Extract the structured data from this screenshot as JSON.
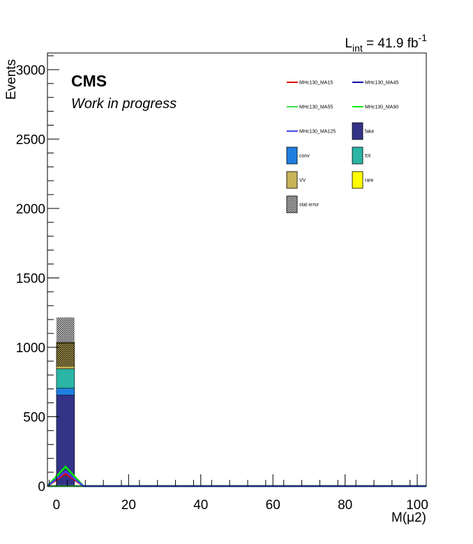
{
  "chart_data": {
    "type": "bar",
    "stacked": true,
    "xlabel": "M(μ2)",
    "ylabel": "Events",
    "xlim": [
      -2.5,
      102.5
    ],
    "ylim": [
      0,
      3120
    ],
    "x_ticks": [
      0,
      20,
      40,
      60,
      80,
      100
    ],
    "y_ticks": [
      0,
      500,
      1000,
      1500,
      2000,
      2500,
      3000
    ],
    "bin_width": 5,
    "grid": false,
    "legend_position": "top-right",
    "lumi_label": {
      "prefix": "L",
      "sub": "int",
      "mid": " = 41.9 fb",
      "sup": "-1"
    },
    "cms_label": "CMS",
    "extra_label": "Work in progress",
    "stack": [
      {
        "name": "fake",
        "color": "#333388",
        "values": [
          655
        ]
      },
      {
        "name": "conv",
        "color": "#1f7fe0",
        "values": [
          50
        ]
      },
      {
        "name": "ttX",
        "color": "#2ab5a5",
        "values": [
          140
        ]
      },
      {
        "name": "VV",
        "color": "#c8b35a",
        "values": [
          185
        ]
      },
      {
        "name": "rare",
        "color": "#ffff00",
        "values": [
          5
        ]
      }
    ],
    "stat_error": {
      "name": "stat error",
      "center": [
        1035
      ],
      "low": [
        860
      ],
      "high": [
        1215
      ]
    },
    "signals": [
      {
        "name": "MHc130_MA15",
        "color": "#e00000",
        "x": [
          -2.5,
          2.5,
          7.5,
          102.5
        ],
        "y": [
          0,
          90,
          0,
          0
        ]
      },
      {
        "name": "MHc130_MA45",
        "color": "#0000aa",
        "x": [
          -2.5,
          2.5,
          7.5,
          102.5
        ],
        "y": [
          0,
          0,
          0,
          0
        ]
      },
      {
        "name": "MHc130_MA55",
        "color": "#44dd44",
        "x": [
          -2.5,
          2.5,
          7.5,
          102.5
        ],
        "y": [
          0,
          0,
          0,
          0
        ]
      },
      {
        "name": "MHc130_MA90",
        "color": "#00ee00",
        "x": [
          -2.5,
          2.5,
          7.5,
          102.5
        ],
        "y": [
          0,
          140,
          0,
          0
        ]
      },
      {
        "name": "MHc130_MA125",
        "color": "#4444ee",
        "x": [
          -2.5,
          2.5,
          7.5,
          102.5
        ],
        "y": [
          0,
          105,
          0,
          0
        ]
      }
    ],
    "legend": [
      {
        "label": "MHc130_MA15",
        "kind": "line",
        "color": "#e00000"
      },
      {
        "label": "MHc130_MA45",
        "kind": "line",
        "color": "#0000aa"
      },
      {
        "label": "MHc130_MA55",
        "kind": "line",
        "color": "#44dd44"
      },
      {
        "label": "MHc130_MA90",
        "kind": "line",
        "color": "#00ee00"
      },
      {
        "label": "MHc130_MA125",
        "kind": "line",
        "color": "#4444ee"
      },
      {
        "label": "fake",
        "kind": "box",
        "color": "#333388"
      },
      {
        "label": "conv",
        "kind": "box",
        "color": "#1f7fe0"
      },
      {
        "label": "ttX",
        "kind": "box",
        "color": "#2ab5a5"
      },
      {
        "label": "VV",
        "kind": "box",
        "color": "#c8b35a"
      },
      {
        "label": "rare",
        "kind": "box",
        "color": "#ffff00"
      },
      {
        "label": "stat error",
        "kind": "hatch",
        "color": "#000000"
      }
    ]
  }
}
